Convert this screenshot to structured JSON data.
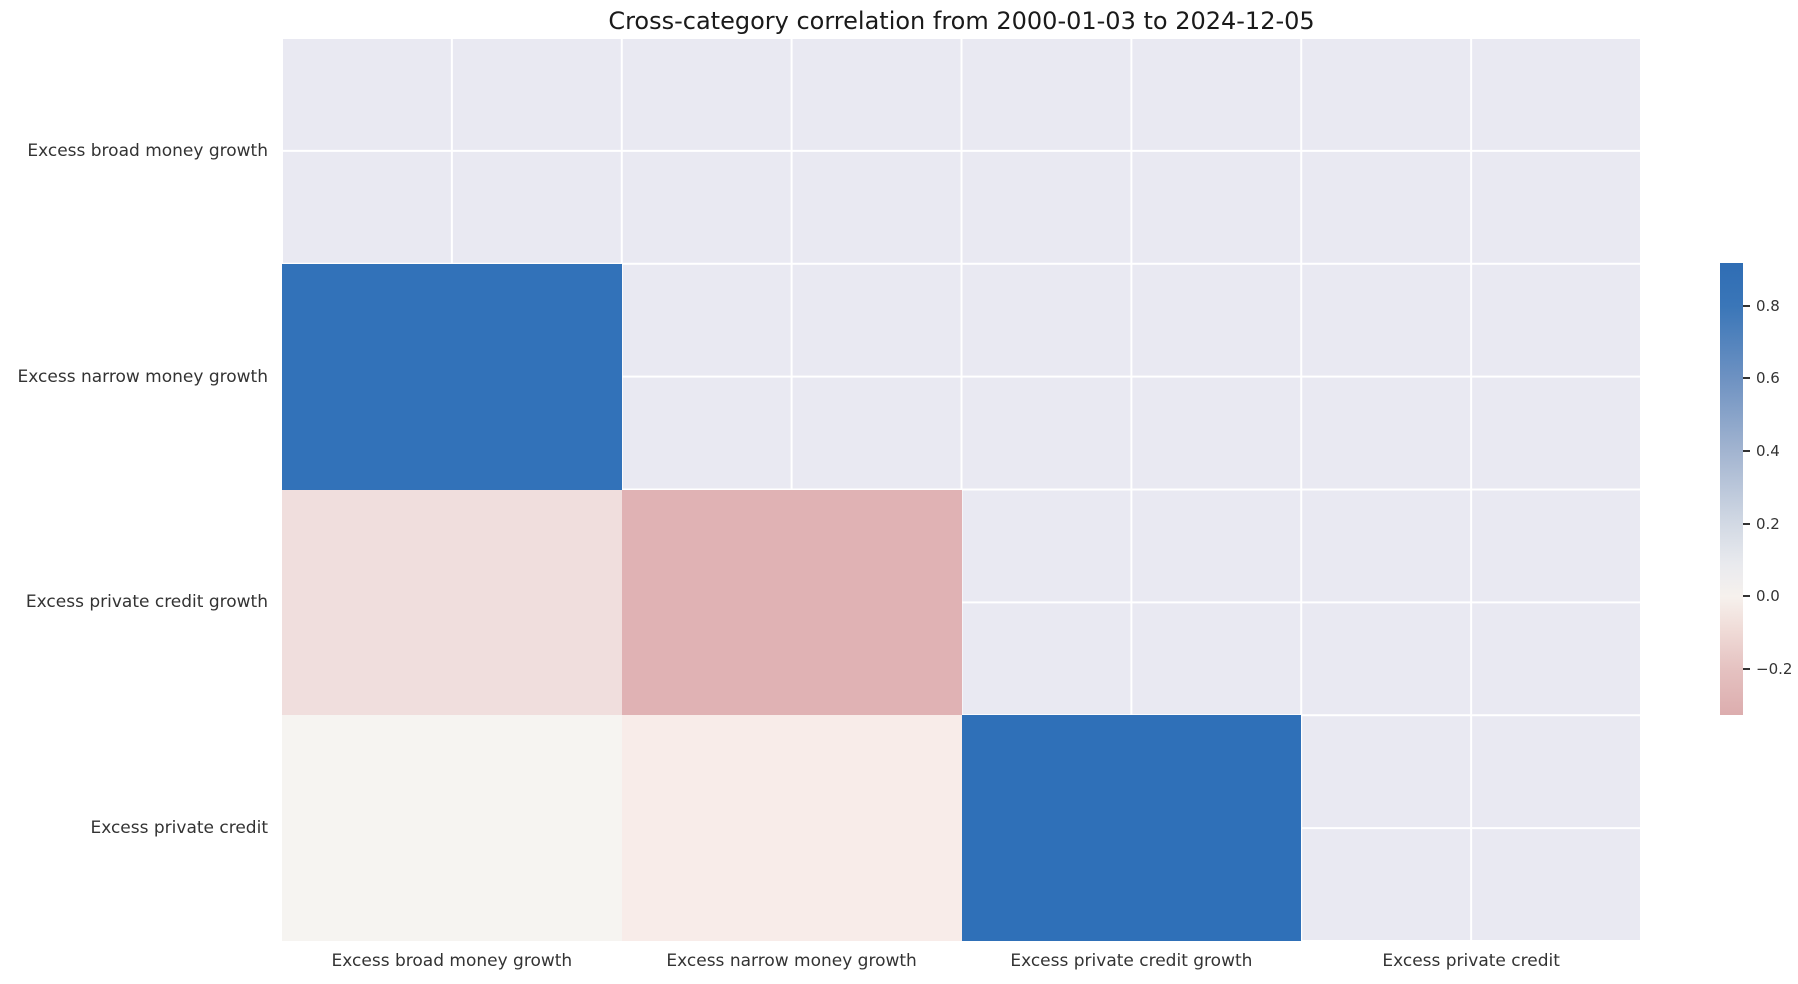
{
  "title": "Cross-category correlation from 2000-01-03 to 2024-12-05",
  "colors": {
    "figure_background": "#ffffff",
    "masked_cell_background": "#e9e9f2",
    "gridline": "#ffffff",
    "title_text": "#1a1a1a",
    "tick_label_text": "#333333",
    "strong_positive_blue": "#3272b9",
    "strong_negative_rose": "#e0b2b4"
  },
  "chart_data": {
    "type": "heatmap",
    "title": "Cross-category correlation from 2000-01-03 to 2024-12-05",
    "x_categories": [
      "Excess broad money growth",
      "Excess narrow money growth",
      "Excess private credit growth",
      "Excess private credit"
    ],
    "y_categories": [
      "Excess broad money growth",
      "Excess narrow money growth",
      "Excess private credit growth",
      "Excess private credit"
    ],
    "mask": "upper triangle and diagonal hidden (shown as plain grid background)",
    "matrix": [
      [
        null,
        null,
        null,
        null
      ],
      [
        0.92,
        null,
        null,
        null
      ],
      [
        -0.15,
        -0.33,
        null,
        null
      ],
      [
        0.03,
        -0.08,
        0.9,
        null
      ]
    ],
    "cells": [
      {
        "row": 1,
        "col": 0,
        "value": 0.92,
        "color": "#3272b9"
      },
      {
        "row": 2,
        "col": 0,
        "value": -0.15,
        "color": "#f0dedd"
      },
      {
        "row": 2,
        "col": 1,
        "value": -0.33,
        "color": "#e0b2b4"
      },
      {
        "row": 3,
        "col": 0,
        "value": 0.03,
        "color": "#f6f4f1"
      },
      {
        "row": 3,
        "col": 1,
        "value": -0.08,
        "color": "#f8ece9"
      },
      {
        "row": 3,
        "col": 2,
        "value": 0.9,
        "color": "#2f70b8"
      }
    ],
    "colorbar": {
      "position": "right",
      "vmin": -0.327,
      "vmax": 0.918,
      "tick_values": [
        0.8,
        0.6,
        0.4,
        0.2,
        0.0,
        -0.2
      ],
      "tick_labels": [
        "0.8",
        "0.6",
        "0.4",
        "0.2",
        "0.0",
        "−0.2"
      ],
      "gradient_stops": [
        {
          "at": 0.0,
          "color": "#2f6db4"
        },
        {
          "at": 0.095,
          "color": "#3a76b8"
        },
        {
          "at": 0.256,
          "color": "#6e92c2"
        },
        {
          "at": 0.416,
          "color": "#a2b4d0"
        },
        {
          "at": 0.577,
          "color": "#d2d9e4"
        },
        {
          "at": 0.667,
          "color": "#e9eaee"
        },
        {
          "at": 0.738,
          "color": "#f6f1ed"
        },
        {
          "at": 0.81,
          "color": "#f0dcd8"
        },
        {
          "at": 0.898,
          "color": "#e5c2c1"
        },
        {
          "at": 1.0,
          "color": "#dcadae"
        }
      ]
    },
    "grid": true,
    "legend_position": "right colorbar"
  }
}
